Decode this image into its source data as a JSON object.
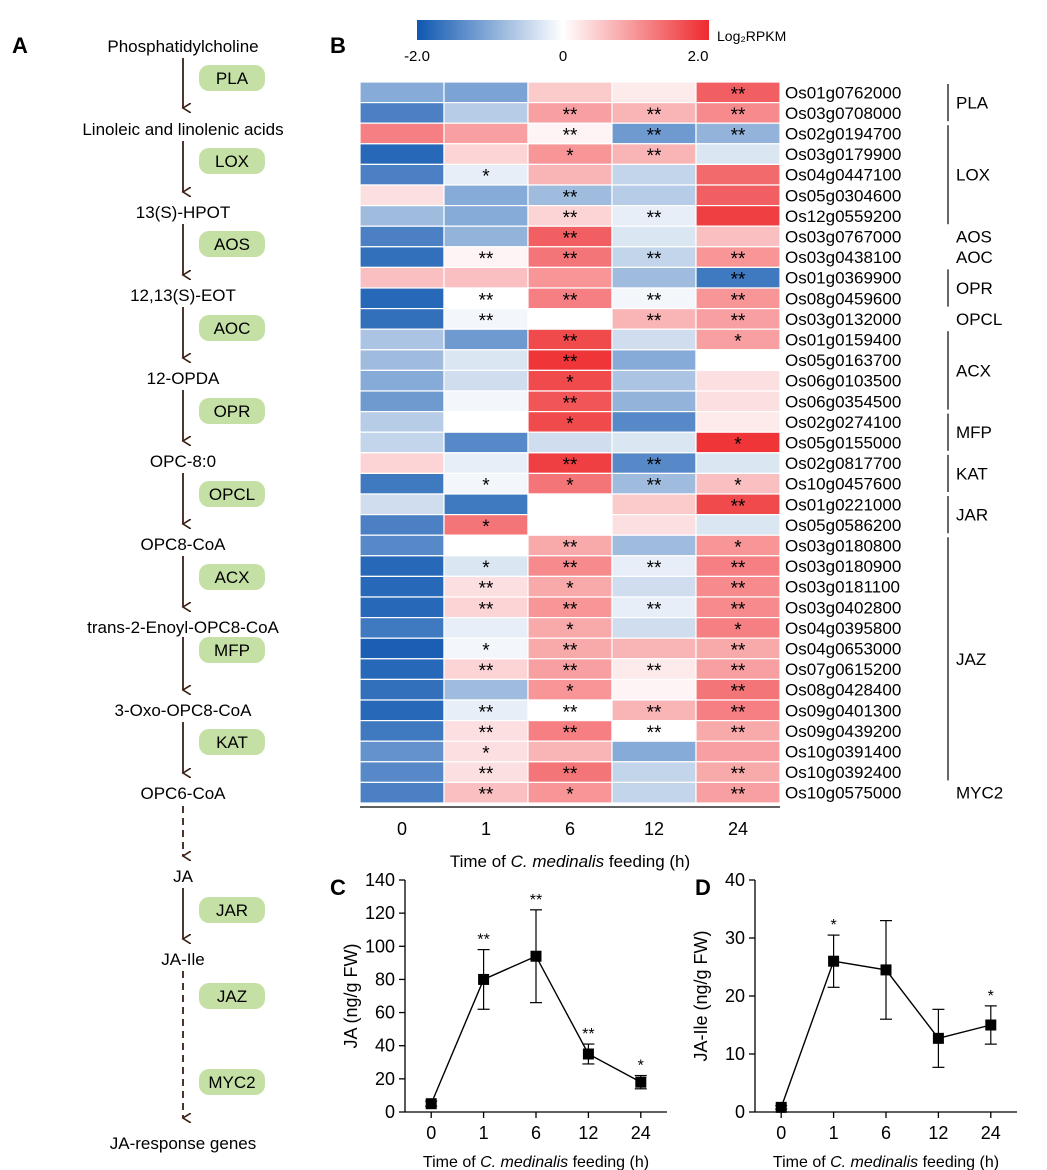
{
  "panel_labels": {
    "a": "A",
    "b": "B",
    "c": "C",
    "d": "D"
  },
  "pathway": {
    "compounds": [
      "Phosphatidylcholine",
      "Linoleic and linolenic acids",
      "13(S)-HPOT",
      "12,13(S)-EOT",
      "12-OPDA",
      "OPC-8:0",
      "OPC8-CoA",
      "trans-2-Enoyl-OPC8-CoA",
      "3-Oxo-OPC8-CoA",
      "OPC6-CoA",
      "JA",
      "JA-Ile",
      "JA-response genes"
    ],
    "enzymes": [
      "PLA",
      "LOX",
      "AOS",
      "AOC",
      "OPR",
      "OPCL",
      "ACX",
      "MFP",
      "KAT",
      "JAR",
      "JAZ",
      "MYC2"
    ],
    "enzyme_fill": "#c5e0a5"
  },
  "legend": {
    "min_label": "-2.0",
    "mid_label": "0",
    "max_label": "2.0",
    "title": "Log₂RPKM",
    "low_color": "#0f57b0",
    "mid_color": "#ffffff",
    "high_color": "#ee2a2e"
  },
  "heatmap": {
    "x_categories": [
      "0",
      "1",
      "6",
      "12",
      "24"
    ],
    "x_label_pre": "Time of ",
    "x_label_italic": "C. medinalis",
    "x_label_post": " feeding (h)",
    "genes": [
      "Os01g0762000",
      "Os03g0708000",
      "Os02g0194700",
      "Os03g0179900",
      "Os04g0447100",
      "Os05g0304600",
      "Os12g0559200",
      "Os03g0767000",
      "Os03g0438100",
      "Os01g0369900",
      "Os08g0459600",
      "Os03g0132000",
      "Os01g0159400",
      "Os05g0163700",
      "Os06g0103500",
      "Os06g0354500",
      "Os02g0274100",
      "Os05g0155000",
      "Os02g0817700",
      "Os10g0457600",
      "Os01g0221000",
      "Os05g0586200",
      "Os03g0180800",
      "Os03g0180900",
      "Os03g0181100",
      "Os03g0402800",
      "Os04g0395800",
      "Os04g0653000",
      "Os07g0615200",
      "Os08g0428400",
      "Os09g0401300",
      "Os09g0439200",
      "Os10g0391400",
      "Os10g0392400",
      "Os10g0575000"
    ],
    "groups": [
      {
        "name": "PLA",
        "rows": [
          0,
          1
        ]
      },
      {
        "name": "LOX",
        "rows": [
          2,
          6
        ]
      },
      {
        "name": "AOS",
        "rows": [
          7,
          7
        ]
      },
      {
        "name": "AOC",
        "rows": [
          8,
          8
        ]
      },
      {
        "name": "OPR",
        "rows": [
          9,
          10
        ]
      },
      {
        "name": "OPCL",
        "rows": [
          11,
          11
        ]
      },
      {
        "name": "ACX",
        "rows": [
          12,
          15
        ]
      },
      {
        "name": "MFP",
        "rows": [
          16,
          17
        ]
      },
      {
        "name": "KAT",
        "rows": [
          18,
          19
        ]
      },
      {
        "name": "JAR",
        "rows": [
          20,
          21
        ]
      },
      {
        "name": "JAZ",
        "rows": [
          22,
          33
        ]
      },
      {
        "name": "MYC2",
        "rows": [
          34,
          34
        ]
      }
    ],
    "stars": [
      [
        "",
        "",
        "",
        "",
        "**"
      ],
      [
        "",
        "",
        "**",
        "**",
        "**"
      ],
      [
        "",
        "",
        "**",
        "**",
        "**"
      ],
      [
        "",
        "",
        "*",
        "**",
        ""
      ],
      [
        "",
        "*",
        "",
        "",
        ""
      ],
      [
        "",
        "",
        "**",
        "",
        ""
      ],
      [
        "",
        "",
        "**",
        "**",
        ""
      ],
      [
        "",
        "",
        "**",
        "",
        ""
      ],
      [
        "",
        "**",
        "**",
        "**",
        "**"
      ],
      [
        "",
        "",
        "",
        "",
        "**"
      ],
      [
        "",
        "**",
        "**",
        "**",
        "**"
      ],
      [
        "",
        "**",
        "",
        "**",
        "**"
      ],
      [
        "",
        "",
        "**",
        "",
        "*"
      ],
      [
        "",
        "",
        "**",
        "",
        ""
      ],
      [
        "",
        "",
        "*",
        "",
        ""
      ],
      [
        "",
        "",
        "**",
        "",
        ""
      ],
      [
        "",
        "",
        "*",
        "",
        ""
      ],
      [
        "",
        "",
        "",
        "",
        "*"
      ],
      [
        "",
        "",
        "**",
        "**",
        ""
      ],
      [
        "",
        "*",
        "*",
        "**",
        "*"
      ],
      [
        "",
        "",
        "",
        "",
        "**"
      ],
      [
        "",
        "*",
        "",
        "",
        ""
      ],
      [
        "",
        "",
        "**",
        "",
        "*"
      ],
      [
        "",
        "*",
        "**",
        "**",
        "**"
      ],
      [
        "",
        "**",
        "*",
        "",
        "**"
      ],
      [
        "",
        "**",
        "**",
        "**",
        "**"
      ],
      [
        "",
        "",
        "*",
        "",
        "*"
      ],
      [
        "",
        "*",
        "**",
        "",
        "**"
      ],
      [
        "",
        "**",
        "**",
        "**",
        "**"
      ],
      [
        "",
        "",
        "*",
        "",
        "**"
      ],
      [
        "",
        "**",
        "**",
        "**",
        "**"
      ],
      [
        "",
        "**",
        "**",
        "**",
        "**"
      ],
      [
        "",
        "*",
        "",
        "",
        ""
      ],
      [
        "",
        "**",
        "**",
        "",
        "**"
      ],
      [
        "",
        "**",
        "*",
        "",
        "**"
      ]
    ]
  },
  "chart_data": [
    {
      "type": "heatmap",
      "legend_title": "Log₂RPKM",
      "color_range": [
        -2.0,
        2.0
      ],
      "x": [
        "0",
        "1",
        "6",
        "12",
        "24"
      ],
      "rows": [
        "Os01g0762000",
        "Os03g0708000",
        "Os02g0194700",
        "Os03g0179900",
        "Os04g0447100",
        "Os05g0304600",
        "Os12g0559200",
        "Os03g0767000",
        "Os03g0438100",
        "Os01g0369900",
        "Os08g0459600",
        "Os03g0132000",
        "Os01g0159400",
        "Os05g0163700",
        "Os06g0103500",
        "Os06g0354500",
        "Os02g0274100",
        "Os05g0155000",
        "Os02g0817700",
        "Os10g0457600",
        "Os01g0221000",
        "Os05g0586200",
        "Os03g0180800",
        "Os03g0180900",
        "Os03g0181100",
        "Os03g0402800",
        "Os04g0395800",
        "Os04g0653000",
        "Os07g0615200",
        "Os08g0428400",
        "Os09g0401300",
        "Os09g0439200",
        "Os10g0391400",
        "Os10g0392400",
        "Os10g0575000"
      ],
      "values": [
        [
          -1.0,
          -1.1,
          0.5,
          0.2,
          1.5
        ],
        [
          -1.5,
          -0.6,
          0.9,
          0.7,
          1.1
        ],
        [
          1.2,
          0.9,
          0.1,
          -1.2,
          -0.9
        ],
        [
          -1.8,
          0.4,
          1.0,
          0.7,
          -0.3
        ],
        [
          -1.5,
          -0.2,
          0.7,
          -0.5,
          1.4
        ],
        [
          0.3,
          -1.0,
          -0.8,
          -0.6,
          1.5
        ],
        [
          -0.8,
          -1.0,
          0.4,
          -0.2,
          1.8
        ],
        [
          -1.5,
          -0.9,
          1.5,
          -0.3,
          0.6
        ],
        [
          -1.7,
          0.1,
          1.3,
          -0.5,
          1.0
        ],
        [
          0.6,
          0.6,
          1.0,
          -0.8,
          -1.6
        ],
        [
          -1.8,
          0.0,
          1.2,
          -0.1,
          1.0
        ],
        [
          -1.7,
          -0.1,
          0.0,
          0.7,
          0.9
        ],
        [
          -0.7,
          -1.2,
          1.7,
          -0.4,
          0.9
        ],
        [
          -0.8,
          -0.3,
          1.9,
          -1.0,
          0.0
        ],
        [
          -1.0,
          -0.4,
          1.7,
          -0.7,
          0.3
        ],
        [
          -1.2,
          -0.1,
          1.6,
          -0.9,
          0.3
        ],
        [
          -0.6,
          0.0,
          1.7,
          -1.4,
          0.2
        ],
        [
          -0.5,
          -1.4,
          -0.4,
          -0.3,
          1.9
        ],
        [
          0.4,
          -0.2,
          1.8,
          -1.4,
          -0.3
        ],
        [
          -1.6,
          -0.1,
          1.3,
          -0.8,
          0.6
        ],
        [
          -0.4,
          -1.6,
          0.0,
          0.5,
          1.7
        ],
        [
          -1.5,
          1.3,
          0.0,
          0.3,
          -0.3
        ],
        [
          -1.4,
          0.0,
          0.8,
          -0.8,
          1.0
        ],
        [
          -1.8,
          -0.3,
          1.1,
          -0.2,
          1.2
        ],
        [
          -1.8,
          0.3,
          0.8,
          -0.4,
          1.1
        ],
        [
          -1.8,
          0.4,
          1.0,
          -0.2,
          1.1
        ],
        [
          -1.6,
          -0.2,
          0.8,
          -0.4,
          1.2
        ],
        [
          -1.9,
          -0.1,
          0.8,
          0.7,
          0.8
        ],
        [
          -1.8,
          0.4,
          0.9,
          0.2,
          0.9
        ],
        [
          -1.7,
          -0.8,
          1.0,
          0.1,
          1.3
        ],
        [
          -1.8,
          -0.2,
          0.0,
          0.7,
          1.2
        ],
        [
          -1.6,
          0.3,
          1.2,
          0.0,
          0.8
        ],
        [
          -1.3,
          0.3,
          0.7,
          -1.0,
          0.9
        ],
        [
          -1.4,
          0.3,
          1.3,
          -0.5,
          0.8
        ],
        [
          -1.5,
          0.6,
          1.0,
          -0.5,
          0.9
        ]
      ]
    },
    {
      "type": "line",
      "x": [
        "0",
        "1",
        "6",
        "12",
        "24"
      ],
      "values": [
        5,
        80,
        94,
        35,
        18
      ],
      "error": [
        1.5,
        18,
        28,
        6,
        4
      ],
      "significance": [
        "",
        "**",
        "**",
        "**",
        "*"
      ],
      "ylabel": "JA (ng/g FW)",
      "ylim": [
        0,
        140
      ],
      "yticks": [
        "0",
        "20",
        "40",
        "60",
        "80",
        "100",
        "120",
        "140"
      ],
      "xlabel_pre": "Time of ",
      "xlabel_italic": "C. medinalis",
      "xlabel_post": " feeding (h)"
    },
    {
      "type": "line",
      "x": [
        "0",
        "1",
        "6",
        "12",
        "24"
      ],
      "values": [
        0.8,
        26,
        24.5,
        12.7,
        15
      ],
      "error": [
        0.3,
        4.5,
        8.5,
        5,
        3.3
      ],
      "significance": [
        "",
        "*",
        "",
        "",
        "*"
      ],
      "ylabel": "JA-Ile (ng/g FW)",
      "ylim": [
        0,
        40
      ],
      "yticks": [
        "0",
        "10",
        "20",
        "30",
        "40"
      ],
      "xlabel_pre": "Time of ",
      "xlabel_italic": "C. medinalis",
      "xlabel_post": " feeding (h)"
    }
  ]
}
